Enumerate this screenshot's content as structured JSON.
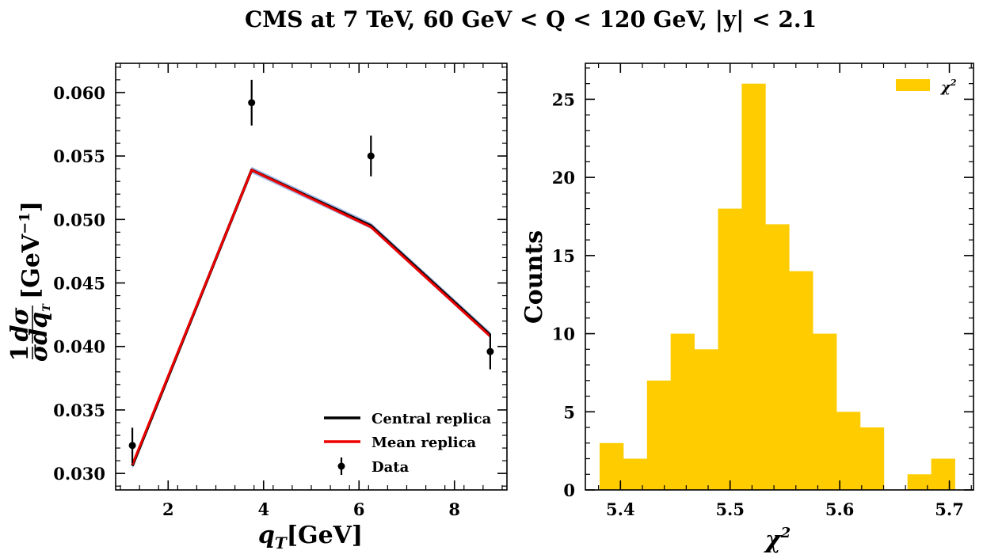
{
  "figure": {
    "title": "CMS at 7 TeV, 60 GeV < Q < 120 GeV, |y| < 2.1"
  },
  "chart_data": [
    {
      "type": "line",
      "title": "",
      "xlabel": "q_T[GeV]",
      "ylabel": "(1/σ) dσ/dq_T [GeV^-1]",
      "xlim": [
        0.9,
        9.1
      ],
      "ylim": [
        0.0287,
        0.0623
      ],
      "xticks": [
        2,
        4,
        6,
        8
      ],
      "xtick_labels": [
        "2",
        "4",
        "6",
        "8"
      ],
      "yticks": [
        0.03,
        0.035,
        0.04,
        0.045,
        0.05,
        0.055,
        0.06
      ],
      "ytick_labels": [
        "0.030",
        "0.035",
        "0.040",
        "0.045",
        "0.050",
        "0.055",
        "0.060"
      ],
      "x": [
        1.25,
        3.75,
        6.25,
        8.75
      ],
      "series": [
        {
          "name": "Central replica",
          "color": "#000000",
          "values": [
            0.0306,
            0.0539,
            0.0495,
            0.0409
          ]
        },
        {
          "name": "Mean replica",
          "color": "#ee0000",
          "values": [
            0.0307,
            0.0539,
            0.0494,
            0.0408
          ]
        },
        {
          "name": "Data",
          "color": "#000000",
          "values": [
            0.0322,
            0.0592,
            0.055,
            0.0396
          ],
          "errors": [
            0.0014,
            0.0018,
            0.0016,
            0.0014
          ]
        }
      ],
      "legend": [
        "Central replica",
        "Mean replica",
        "Data"
      ],
      "legend_position": "lower-right"
    },
    {
      "type": "bar",
      "title": "",
      "xlabel": "χ²",
      "ylabel": "Counts",
      "xlim": [
        5.368,
        5.722
      ],
      "ylim": [
        0,
        27.3
      ],
      "xticks": [
        5.4,
        5.5,
        5.6,
        5.7
      ],
      "xtick_labels": [
        "5.4",
        "5.5",
        "5.6",
        "5.7"
      ],
      "yticks": [
        0,
        5,
        10,
        15,
        20,
        25
      ],
      "ytick_labels": [
        "0",
        "5",
        "10",
        "15",
        "20",
        "25"
      ],
      "bin_edges": [
        5.381,
        5.4026,
        5.4242,
        5.4458,
        5.4674,
        5.489,
        5.5106,
        5.5322,
        5.5538,
        5.5754,
        5.597,
        5.6186,
        5.6402,
        5.6618,
        5.6834,
        5.705
      ],
      "values": [
        3,
        2,
        7,
        10,
        9,
        18,
        26,
        17,
        14,
        10,
        5,
        4,
        0,
        1,
        2
      ],
      "color": "#ffcc00",
      "legend": [
        "χ²"
      ],
      "legend_position": "top-right"
    }
  ]
}
